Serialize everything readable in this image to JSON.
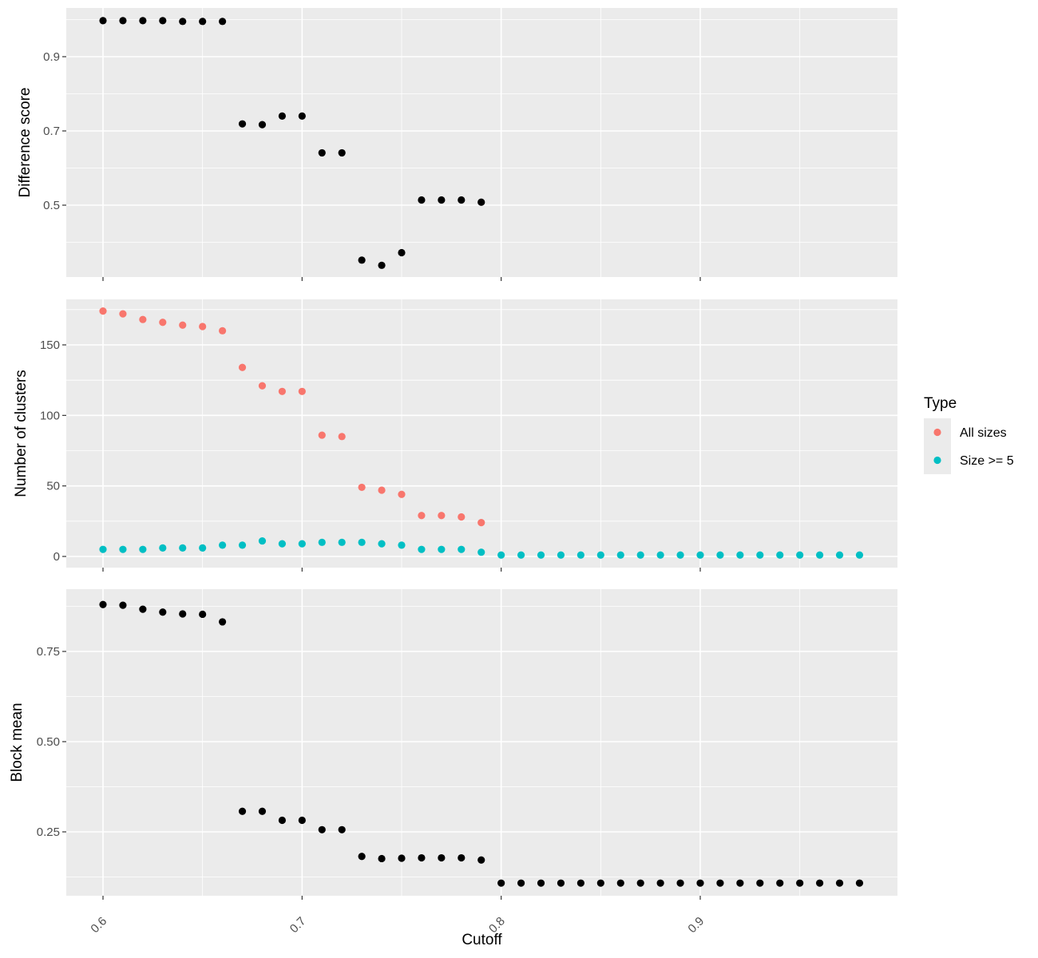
{
  "chart_data": [
    {
      "type": "scatter",
      "panel": "top",
      "xlabel": "",
      "ylabel": "Difference score",
      "xlim": [
        0.6,
        0.98
      ],
      "ylim": [
        0.4,
        1.0
      ],
      "x_ticks": [
        0.6,
        0.7,
        0.8,
        0.9
      ],
      "y_ticks": [
        0.5,
        0.7,
        0.9
      ],
      "y_tick_labels": [
        "0.5",
        "0.7",
        "0.9"
      ],
      "grid": true,
      "series": [
        {
          "color": "#000000",
          "x": [
            0.6,
            0.61,
            0.62,
            0.63,
            0.64,
            0.65,
            0.66,
            0.67,
            0.68,
            0.69,
            0.7,
            0.71,
            0.72,
            0.73,
            0.74,
            0.75,
            0.76,
            0.77,
            0.78,
            0.79
          ],
          "y": [
            0.997,
            0.997,
            0.997,
            0.997,
            0.995,
            0.995,
            0.995,
            0.719,
            0.717,
            0.74,
            0.74,
            0.641,
            0.641,
            0.352,
            0.338,
            0.372,
            0.514,
            0.514,
            0.514,
            0.508
          ]
        }
      ]
    },
    {
      "type": "scatter",
      "panel": "middle",
      "xlabel": "",
      "ylabel": "Number of clusters",
      "xlim": [
        0.6,
        0.98
      ],
      "ylim": [
        0,
        175
      ],
      "x_ticks": [
        0.6,
        0.7,
        0.8,
        0.9
      ],
      "y_ticks": [
        0,
        50,
        100,
        150
      ],
      "y_tick_labels": [
        "0",
        "50",
        "100",
        "150"
      ],
      "grid": true,
      "legend": {
        "title": "Type",
        "placement": "right",
        "entries": [
          {
            "label": "All sizes",
            "color": "#F8766D"
          },
          {
            "label": "Size >= 5",
            "color": "#00BFC4"
          }
        ]
      },
      "series": [
        {
          "name": "All sizes",
          "color": "#F8766D",
          "x": [
            0.6,
            0.61,
            0.62,
            0.63,
            0.64,
            0.65,
            0.66,
            0.67,
            0.68,
            0.69,
            0.7,
            0.71,
            0.72,
            0.73,
            0.74,
            0.75,
            0.76,
            0.77,
            0.78,
            0.79
          ],
          "y": [
            174,
            172,
            168,
            166,
            164,
            163,
            160,
            134,
            121,
            117,
            117,
            86,
            85,
            49,
            47,
            44,
            29,
            29,
            28,
            24
          ]
        },
        {
          "name": "Size >= 5",
          "color": "#00BFC4",
          "x": [
            0.6,
            0.61,
            0.62,
            0.63,
            0.64,
            0.65,
            0.66,
            0.67,
            0.68,
            0.69,
            0.7,
            0.71,
            0.72,
            0.73,
            0.74,
            0.75,
            0.76,
            0.77,
            0.78,
            0.79,
            0.8,
            0.81,
            0.82,
            0.83,
            0.84,
            0.85,
            0.86,
            0.87,
            0.88,
            0.89,
            0.9,
            0.91,
            0.92,
            0.93,
            0.94,
            0.95,
            0.96,
            0.97,
            0.98
          ],
          "y": [
            5,
            5,
            5,
            6,
            6,
            6,
            8,
            8,
            11,
            9,
            9,
            10,
            10,
            10,
            9,
            8,
            5,
            5,
            5,
            3,
            1,
            1,
            1,
            1,
            1,
            1,
            1,
            1,
            1,
            1,
            1,
            1,
            1,
            1,
            1,
            1,
            1,
            1,
            1
          ]
        }
      ]
    },
    {
      "type": "scatter",
      "panel": "bottom",
      "xlabel": "Cutoff",
      "ylabel": "Block mean",
      "xlim": [
        0.6,
        0.98
      ],
      "ylim": [
        0.1,
        0.9
      ],
      "x_ticks": [
        0.6,
        0.7,
        0.8,
        0.9
      ],
      "x_tick_labels": [
        "0.6",
        "0.7",
        "0.8",
        "0.9"
      ],
      "y_ticks": [
        0.25,
        0.5,
        0.75
      ],
      "y_tick_labels": [
        "0.25",
        "0.50",
        "0.75"
      ],
      "grid": true,
      "series": [
        {
          "color": "#000000",
          "x": [
            0.6,
            0.61,
            0.62,
            0.63,
            0.64,
            0.65,
            0.66,
            0.67,
            0.68,
            0.69,
            0.7,
            0.71,
            0.72,
            0.73,
            0.74,
            0.75,
            0.76,
            0.77,
            0.78,
            0.79,
            0.8,
            0.81,
            0.82,
            0.83,
            0.84,
            0.85,
            0.86,
            0.87,
            0.88,
            0.89,
            0.9,
            0.91,
            0.92,
            0.93,
            0.94,
            0.95,
            0.96,
            0.97,
            0.98
          ],
          "y": [
            0.88,
            0.878,
            0.867,
            0.859,
            0.854,
            0.853,
            0.832,
            0.307,
            0.307,
            0.282,
            0.282,
            0.256,
            0.256,
            0.182,
            0.176,
            0.177,
            0.178,
            0.178,
            0.178,
            0.172,
            0.108,
            0.108,
            0.108,
            0.108,
            0.108,
            0.108,
            0.108,
            0.108,
            0.108,
            0.108,
            0.108,
            0.108,
            0.108,
            0.108,
            0.108,
            0.108,
            0.108,
            0.108,
            0.108
          ]
        }
      ]
    }
  ]
}
